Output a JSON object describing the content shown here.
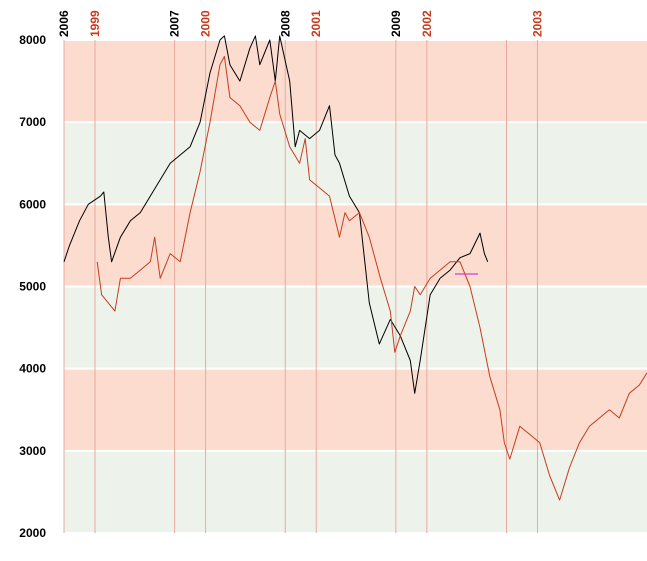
{
  "chart_data": {
    "type": "line",
    "ylim": [
      2000,
      8000
    ],
    "yticks": [
      2000,
      3000,
      4000,
      5000,
      6000,
      7000,
      8000
    ],
    "band_colors": [
      "#edf3ea",
      "#fbdccf"
    ],
    "xlim": [
      2006,
      2011.27
    ],
    "xticks": [
      2006,
      2007,
      2008,
      2009,
      {
        "value": 2010,
        "label": null
      }
    ],
    "x2lim": [
      1998.72,
      2003.99
    ],
    "x2ticks": [
      1999,
      2000,
      2001,
      2002,
      2003
    ],
    "series": [
      {
        "color": "#000000",
        "x": [
          2006.0,
          2006.05,
          2006.14,
          2006.22,
          2006.33,
          2006.36,
          2006.4,
          2006.43,
          2006.51,
          2006.6,
          2006.69,
          2006.78,
          2006.87,
          2006.96,
          2007.05,
          2007.14,
          2007.23,
          2007.32,
          2007.41,
          2007.45,
          2007.5,
          2007.59,
          2007.68,
          2007.73,
          2007.77,
          2007.86,
          2007.91,
          2007.95,
          2008.04,
          2008.09,
          2008.13,
          2008.22,
          2008.31,
          2008.4,
          2008.45,
          2008.49,
          2008.58,
          2008.67,
          2008.76,
          2008.85,
          2008.95,
          2009.04,
          2009.13,
          2009.17,
          2009.22,
          2009.31,
          2009.4,
          2009.49,
          2009.58,
          2009.67,
          2009.76,
          2009.8,
          2009.83
        ],
        "values": [
          5300,
          5500,
          5800,
          6000,
          6100,
          6150,
          5600,
          5300,
          5600,
          5800,
          5900,
          6100,
          6300,
          6500,
          6600,
          6700,
          7000,
          7600,
          8000,
          8050,
          7700,
          7500,
          7900,
          8050,
          7700,
          8000,
          7500,
          8050,
          7500,
          6700,
          6900,
          6800,
          6900,
          7200,
          6600,
          6500,
          6100,
          5900,
          4800,
          4300,
          4600,
          4400,
          4100,
          3700,
          4100,
          4900,
          5100,
          5200,
          5350,
          5400,
          5650,
          5400,
          5300
        ]
      },
      {
        "color": "#c83c1e",
        "axis": "x2",
        "x": [
          1999.02,
          1999.06,
          1999.18,
          1999.23,
          1999.32,
          1999.41,
          1999.5,
          1999.54,
          1999.59,
          1999.68,
          1999.77,
          1999.86,
          1999.95,
          2000.04,
          2000.13,
          2000.17,
          2000.22,
          2000.31,
          2000.4,
          2000.49,
          2000.58,
          2000.63,
          2000.67,
          2000.76,
          2000.85,
          2000.9,
          2000.94,
          2001.03,
          2001.12,
          2001.21,
          2001.26,
          2001.3,
          2001.39,
          2001.48,
          2001.58,
          2001.67,
          2001.71,
          2001.76,
          2001.85,
          2001.89,
          2001.94,
          2002.03,
          2002.12,
          2002.21,
          2002.3,
          2002.39,
          2002.48,
          2002.57,
          2002.66,
          2002.7,
          2002.75,
          2002.84,
          2002.93,
          2003.02,
          2003.11,
          2003.2,
          2003.29,
          2003.38,
          2003.47,
          2003.56,
          2003.65,
          2003.74,
          2003.83,
          2003.92,
          2003.99
        ],
        "values": [
          5300,
          4900,
          4700,
          5100,
          5100,
          5200,
          5300,
          5600,
          5100,
          5400,
          5300,
          5900,
          6400,
          7000,
          7700,
          7800,
          7300,
          7200,
          7000,
          6900,
          7300,
          7500,
          7100,
          6700,
          6500,
          6800,
          6300,
          6200,
          6100,
          5600,
          5900,
          5800,
          5900,
          5600,
          5100,
          4700,
          4200,
          4400,
          4700,
          5000,
          4900,
          5100,
          5200,
          5300,
          5300,
          5000,
          4500,
          3900,
          3500,
          3100,
          2900,
          3300,
          3200,
          3100,
          2700,
          2400,
          2800,
          3100,
          3300,
          3400,
          3500,
          3400,
          3700,
          3800,
          3950
        ]
      }
    ]
  }
}
